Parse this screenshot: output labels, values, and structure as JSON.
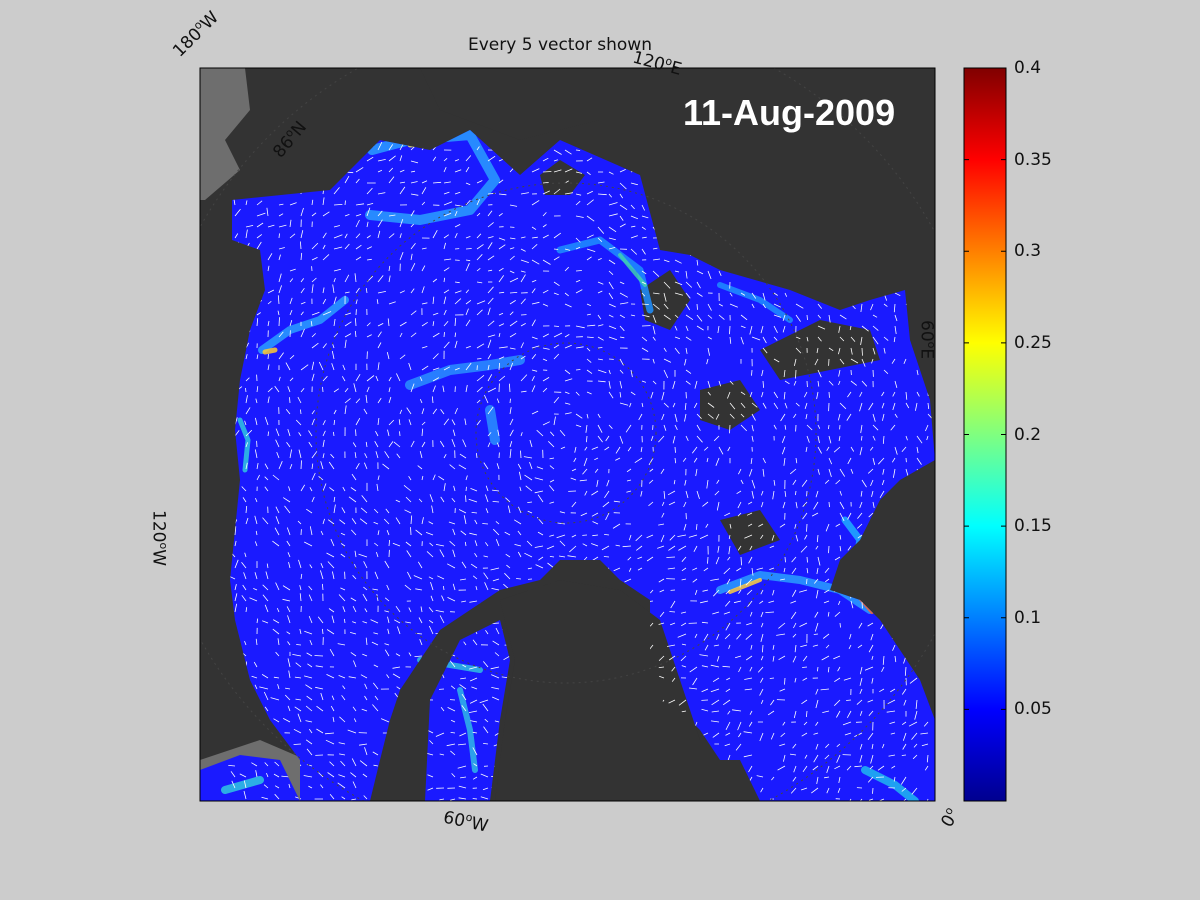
{
  "map": {
    "title": "Every 5 vector shown",
    "date": "11-Aug-2009",
    "longitude_labels": {
      "lon_180w": {
        "value": "180",
        "unit": "W"
      },
      "lon_120e": {
        "value": "120",
        "unit": "E"
      },
      "lon_60e": {
        "value": "60",
        "unit": "E"
      },
      "lon_120w": {
        "value": "120",
        "unit": "W"
      },
      "lon_60w": {
        "value": "60",
        "unit": "W"
      },
      "lon_0": {
        "value": "0",
        "unit": ""
      }
    },
    "latitude_label": {
      "value": "86",
      "unit": "N"
    }
  },
  "colorbar": {
    "colormap": "jet",
    "min": 0,
    "max": 0.4,
    "ticks": [
      "0.05",
      "0.1",
      "0.15",
      "0.2",
      "0.25",
      "0.3",
      "0.35",
      "0.4"
    ]
  },
  "colors": {
    "figure_background": "#cccccc",
    "land": "#333333",
    "ocean_unmasked": "#6e6e6e",
    "ice_speed_base": "#1a1aff",
    "vectors": "#ffffff",
    "date_text": "#ffffff"
  }
}
